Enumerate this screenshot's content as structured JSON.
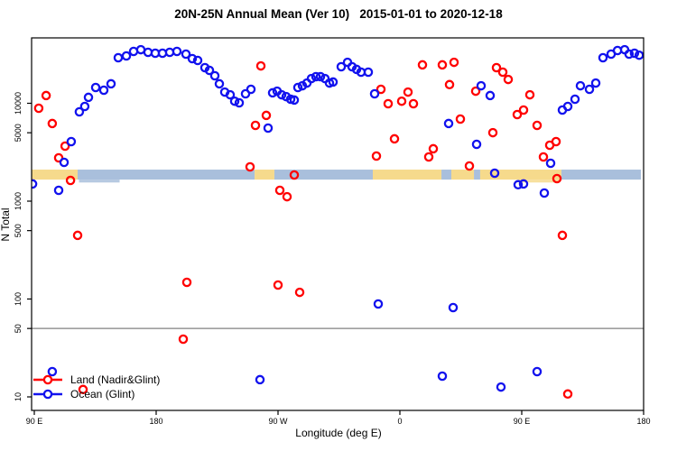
{
  "title": "20N-25N Annual Mean (Ver 10)   2015-01-01 to 2020-12-18",
  "axes": {
    "x": {
      "label": "Longitude (deg E)",
      "ticks": [
        {
          "deg": 90,
          "label": "90 E"
        },
        {
          "deg": 180,
          "label": "180"
        },
        {
          "deg": 270,
          "label": "90 W"
        },
        {
          "deg": 360,
          "label": "0"
        },
        {
          "deg": 450,
          "label": "90 E"
        },
        {
          "deg": 540,
          "label": "180"
        }
      ]
    },
    "y": {
      "label": "N Total",
      "scale": "log10",
      "ticks": [
        {
          "value": 10,
          "label": "10"
        },
        {
          "value": 50,
          "label": "50"
        },
        {
          "value": 100,
          "label": "100"
        },
        {
          "value": 500,
          "label": "500"
        },
        {
          "value": 1000,
          "label": "1000"
        },
        {
          "value": 5000,
          "label": "5000"
        },
        {
          "value": 10000,
          "label": "10000"
        }
      ]
    }
  },
  "legend": {
    "items": [
      {
        "label": "Land (Nadir&Glint)",
        "color": "#FF0000"
      },
      {
        "label": "Ocean (Glint)",
        "color": "#1212EE"
      }
    ]
  },
  "reference_line": {
    "value": 50,
    "color": "#808080"
  },
  "surface_band": {
    "n_range": [
      1660,
      2100
    ],
    "colors": {
      "land": "#F6DA8C",
      "ocean": "#A9BFDC"
    },
    "segments": [
      {
        "from_deg": 88,
        "to_deg": 122,
        "surface": "land"
      },
      {
        "from_deg": 122,
        "to_deg": 252.7,
        "surface": "ocean"
      },
      {
        "from_deg": 252.7,
        "to_deg": 267.3,
        "surface": "land"
      },
      {
        "from_deg": 267.3,
        "to_deg": 340,
        "surface": "ocean"
      },
      {
        "from_deg": 340,
        "to_deg": 390.7,
        "surface": "land"
      },
      {
        "from_deg": 390.7,
        "to_deg": 398,
        "surface": "ocean"
      },
      {
        "from_deg": 398,
        "to_deg": 414.7,
        "surface": "land"
      },
      {
        "from_deg": 414.7,
        "to_deg": 419.3,
        "surface": "ocean"
      },
      {
        "from_deg": 419.3,
        "to_deg": 479.3,
        "surface": "land"
      },
      {
        "from_deg": 479.3,
        "to_deg": 538,
        "surface": "ocean"
      }
    ],
    "specks": [
      {
        "from_deg": 123,
        "to_deg": 153,
        "surface": "ocean"
      },
      {
        "from_deg": 447,
        "to_deg": 478,
        "surface": "land"
      }
    ]
  },
  "chart_data": {
    "type": "scatter",
    "title": "20N-25N Annual Mean (Ver 10)   2015-01-01 to 2020-12-18",
    "xlabel": "Longitude (deg E)",
    "ylabel": "N Total",
    "x_axis_deg_range": [
      90,
      540
    ],
    "y_axis_range": [
      8.5,
      46500
    ],
    "y_scale": "log",
    "grid": false,
    "legend_position": "bottom-left",
    "series": [
      {
        "name": "Land (Nadir&Glint)",
        "color": "#FF0000",
        "points": [
          [
            93.3,
            8890
          ],
          [
            98.7,
            12000
          ],
          [
            103.3,
            6210
          ],
          [
            108,
            2770
          ],
          [
            112.7,
            3650
          ],
          [
            116.7,
            1630
          ],
          [
            122,
            447
          ],
          [
            126,
            11.9
          ],
          [
            200,
            38.9
          ],
          [
            202.7,
            148
          ],
          [
            249.3,
            2240
          ],
          [
            253.3,
            5940
          ],
          [
            257.3,
            24100
          ],
          [
            261.3,
            7520
          ],
          [
            270,
            139
          ],
          [
            271.3,
            1290
          ],
          [
            276.7,
            1110
          ],
          [
            282,
            1850
          ],
          [
            286,
            117
          ],
          [
            342.7,
            2890
          ],
          [
            346,
            13900
          ],
          [
            351.3,
            9890
          ],
          [
            356,
            4330
          ],
          [
            361.3,
            10500
          ],
          [
            366,
            13000
          ],
          [
            370,
            9890
          ],
          [
            376.7,
            24700
          ],
          [
            381.3,
            2830
          ],
          [
            384.7,
            3430
          ],
          [
            391.3,
            24700
          ],
          [
            396.7,
            15500
          ],
          [
            400,
            26200
          ],
          [
            404.7,
            6900
          ],
          [
            411.3,
            2290
          ],
          [
            416,
            13300
          ],
          [
            428.7,
            5010
          ],
          [
            431.3,
            23100
          ],
          [
            436,
            20800
          ],
          [
            440,
            17500
          ],
          [
            446.7,
            7670
          ],
          [
            451.3,
            8530
          ],
          [
            456,
            12200
          ],
          [
            461.3,
            5940
          ],
          [
            466,
            2830
          ],
          [
            470.7,
            3730
          ],
          [
            475.3,
            4060
          ],
          [
            476,
            1700
          ],
          [
            480,
            447
          ],
          [
            484,
            10.7
          ]
        ]
      },
      {
        "name": "Ocean (Glint)",
        "color": "#1212EE",
        "points": [
          [
            88.7,
            1500
          ],
          [
            103.3,
            18.1
          ],
          [
            108,
            1290
          ],
          [
            112,
            2490
          ],
          [
            117.3,
            4060
          ],
          [
            123.3,
            8170
          ],
          [
            127.3,
            9290
          ],
          [
            130,
            11500
          ],
          [
            135.3,
            14500
          ],
          [
            141.3,
            13600
          ],
          [
            146.7,
            15800
          ],
          [
            152,
            29200
          ],
          [
            158,
            30500
          ],
          [
            163.3,
            33900
          ],
          [
            168.7,
            35300
          ],
          [
            174,
            33200
          ],
          [
            179.3,
            32500
          ],
          [
            184.7,
            32500
          ],
          [
            190,
            33200
          ],
          [
            195.3,
            33900
          ],
          [
            202,
            31800
          ],
          [
            206.7,
            28600
          ],
          [
            210.7,
            27400
          ],
          [
            216,
            23100
          ],
          [
            219.3,
            21700
          ],
          [
            223.3,
            19100
          ],
          [
            226.7,
            15800
          ],
          [
            230.7,
            13000
          ],
          [
            234.7,
            12200
          ],
          [
            238,
            10500
          ],
          [
            241.3,
            10100
          ],
          [
            246,
            12500
          ],
          [
            250,
            13900
          ],
          [
            256.7,
            15
          ],
          [
            262.7,
            5580
          ],
          [
            266,
            12800
          ],
          [
            269.3,
            13300
          ],
          [
            272.7,
            12200
          ],
          [
            276,
            11700
          ],
          [
            279.3,
            11000
          ],
          [
            282,
            10800
          ],
          [
            284.7,
            14500
          ],
          [
            288,
            15100
          ],
          [
            291.3,
            16100
          ],
          [
            294.7,
            17900
          ],
          [
            298,
            18700
          ],
          [
            301.3,
            18700
          ],
          [
            304.7,
            17900
          ],
          [
            308,
            16100
          ],
          [
            310.7,
            16500
          ],
          [
            316.7,
            23600
          ],
          [
            321.3,
            26200
          ],
          [
            324.7,
            23600
          ],
          [
            328,
            22200
          ],
          [
            331.3,
            20800
          ],
          [
            336.7,
            20800
          ],
          [
            341.3,
            12500
          ],
          [
            344,
            89
          ],
          [
            391.3,
            16.3
          ],
          [
            396,
            6210
          ],
          [
            399.3,
            81.8
          ],
          [
            416.7,
            3810
          ],
          [
            420,
            15100
          ],
          [
            426.7,
            12000
          ],
          [
            430,
            1930
          ],
          [
            434.7,
            12.6
          ],
          [
            447.3,
            1470
          ],
          [
            451.3,
            1500
          ],
          [
            461.3,
            18.1
          ],
          [
            466.7,
            1210
          ],
          [
            471.3,
            2440
          ],
          [
            480,
            8530
          ],
          [
            484,
            9290
          ],
          [
            489.3,
            11000
          ],
          [
            493.3,
            15100
          ],
          [
            500,
            13900
          ],
          [
            504.7,
            16100
          ],
          [
            510,
            29200
          ],
          [
            516,
            31800
          ],
          [
            520.7,
            34600
          ],
          [
            526,
            35300
          ],
          [
            529.3,
            31800
          ],
          [
            533.3,
            32500
          ],
          [
            536.7,
            31000
          ]
        ]
      }
    ]
  }
}
